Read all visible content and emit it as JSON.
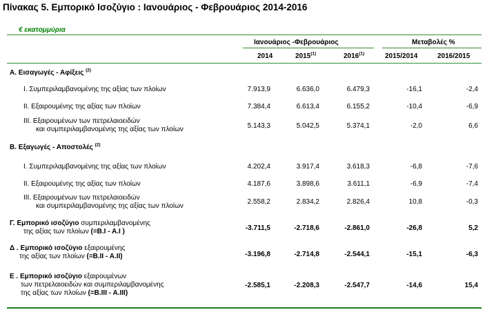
{
  "title": "Πίνακας 5. Εμπορικό Ισοζύγιο : Ιανουάριος - Φεβρουάριος 2014-2016",
  "unit": "€ εκατομμύρια",
  "header": {
    "period_group": "Ιανουάριος -Φεβρουάριος",
    "changes_group": "Μεταβολές %",
    "col_2014": "2014",
    "col_2015": "2015",
    "col_2015_note": "(1)",
    "col_2016": "2016",
    "col_2016_note": "(1)",
    "col_ch1": "2015/2014",
    "col_ch2": "2016/2015"
  },
  "sections": {
    "A": {
      "label": "Α. Εισαγωγές - Αφίξεις",
      "note": "(2)"
    },
    "B": {
      "label": "Β. Εξαγωγές - Αποστολές",
      "note": "(2)"
    }
  },
  "rows": {
    "a1": {
      "label": "Ι.   Συμπεριλαμβανομένης  της αξίας των πλοίων",
      "v2014": "7.913,9",
      "v2015": "6.636,0",
      "v2016": "6.479,3",
      "c1": "-16,1",
      "c2": "-2,4"
    },
    "a2": {
      "label": "ΙΙ.  Εξαιρουμένης  της αξίας των πλοίων",
      "v2014": "7.384,4",
      "v2015": "6.613,4",
      "v2016": "6.155,2",
      "c1": "-10,4",
      "c2": "-6,9"
    },
    "a3": {
      "label1": "ΙΙΙ.  Εξαιρουμένων των πετρελαιοειδών",
      "label2": "και συμπεριλαμβανομένης της αξίας των πλοίων",
      "v2014": "5.143,3",
      "v2015": "5.042,5",
      "v2016": "5.374,1",
      "c1": "-2,0",
      "c2": "6,6"
    },
    "b1": {
      "label": "Ι.   Συμπεριλαμβανομένης  της αξίας των πλοίων",
      "v2014": "4.202,4",
      "v2015": "3.917,4",
      "v2016": "3.618,3",
      "c1": "-6,8",
      "c2": "-7,6"
    },
    "b2": {
      "label": "ΙΙ.  Εξαιρουμένης  της αξίας των πλοίων",
      "v2014": "4.187,6",
      "v2015": "3.898,6",
      "v2016": "3.611,1",
      "c1": "-6,9",
      "c2": "-7,4"
    },
    "b3": {
      "label1": "ΙΙΙ.  Εξαιρουμένων των πετρελαιοειδών",
      "label2": "και συμπεριλαμβανομένης της αξίας των πλοίων",
      "v2014": "2.558,2",
      "v2015": "2.834,2",
      "v2016": "2.826,4",
      "c1": "10,8",
      "c2": "-0,3"
    },
    "g": {
      "label1_bold": "Γ. Εμπορικό ισοζύγιο",
      "label1_rest": " συμπεριλαμβανομένης",
      "label2_rest": "της αξίας των πλοίων ",
      "label2_bold": "(=B.I - A.I )",
      "v2014": "-3.711,5",
      "v2015": "-2.718,6",
      "v2016": "-2.861,0",
      "c1": "-26,8",
      "c2": "5,2"
    },
    "d": {
      "label1_bold": "Δ . Εμπορικό ισοζύγιο",
      "label1_rest": " εξαιρουμένης",
      "label2_rest": "της αξίας των πλοίων ",
      "label2_bold": "(=B.II - A.II)",
      "v2014": "-3.196,8",
      "v2015": "-2.714,8",
      "v2016": "-2.544,1",
      "c1": "-15,1",
      "c2": "-6,3"
    },
    "e": {
      "label1_bold": "Ε . Εμπορικό ισοζύγιο",
      "label1_rest": " εξαιρουμένων",
      "label2": "των πετρελαιοειδών και συμπεριλαμβανομένης",
      "label3_rest": "της αξίας των πλοίων ",
      "label3_bold": "(=B.III - A.III)",
      "v2014": "-2.585,1",
      "v2015": "-2.208,3",
      "v2016": "-2.547,7",
      "c1": "-14,6",
      "c2": "15,4"
    }
  },
  "colors": {
    "accent_green": "#008000",
    "rule_green": "#2e8b2e"
  }
}
